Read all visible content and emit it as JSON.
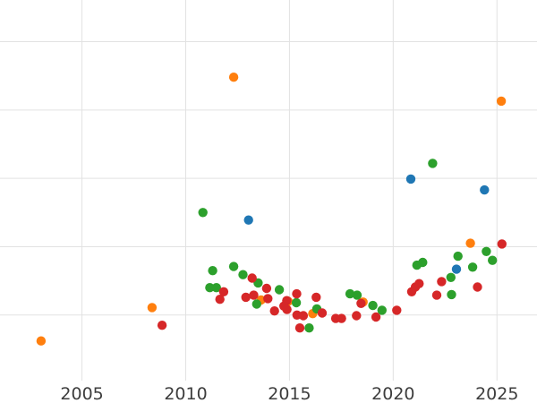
{
  "chart_data": {
    "type": "scatter",
    "title": "",
    "xlabel": "",
    "ylabel": "",
    "x_ticks": [
      2005,
      2010,
      2015,
      2020,
      2025
    ],
    "xlim": [
      2001.05,
      2026.93
    ],
    "ylim": [
      0.04,
      5.61
    ],
    "y_gridlines": [
      1,
      2,
      3,
      4,
      5
    ],
    "grid": true,
    "legend": false,
    "grid_color": "#e2e2e2",
    "tick_label_color": "#3d3d3d",
    "series": [
      {
        "name": "orange",
        "color": "#ff7f0e",
        "points": [
          [
            2003.03,
            0.62
          ],
          [
            2008.38,
            1.11
          ],
          [
            2012.31,
            4.48
          ],
          [
            2025.21,
            4.13
          ],
          [
            2023.72,
            2.05
          ],
          [
            2013.63,
            1.22
          ],
          [
            2014.94,
            1.2
          ],
          [
            2016.12,
            1.02
          ],
          [
            2018.55,
            1.19
          ]
        ]
      },
      {
        "name": "blue",
        "color": "#1f77b4",
        "points": [
          [
            2013.03,
            2.39
          ],
          [
            2020.85,
            2.99
          ],
          [
            2024.4,
            2.83
          ],
          [
            2023.05,
            1.67
          ]
        ]
      },
      {
        "name": "green",
        "color": "#2ca02c",
        "points": [
          [
            2010.83,
            2.5
          ],
          [
            2021.9,
            3.22
          ],
          [
            2011.3,
            1.65
          ],
          [
            2012.31,
            1.71
          ],
          [
            2012.76,
            1.59
          ],
          [
            2011.16,
            1.4
          ],
          [
            2011.48,
            1.4
          ],
          [
            2013.49,
            1.47
          ],
          [
            2014.51,
            1.37
          ],
          [
            2013.42,
            1.16
          ],
          [
            2015.33,
            1.18
          ],
          [
            2016.32,
            1.09
          ],
          [
            2015.95,
            0.81
          ],
          [
            2017.92,
            1.31
          ],
          [
            2018.26,
            1.29
          ],
          [
            2019.02,
            1.14
          ],
          [
            2019.46,
            1.07
          ],
          [
            2021.14,
            1.73
          ],
          [
            2021.42,
            1.77
          ],
          [
            2023.12,
            1.86
          ],
          [
            2022.78,
            1.55
          ],
          [
            2022.81,
            1.3
          ],
          [
            2023.83,
            1.7
          ],
          [
            2024.49,
            1.93
          ],
          [
            2024.78,
            1.8
          ]
        ]
      },
      {
        "name": "red",
        "color": "#d62728",
        "points": [
          [
            2008.86,
            0.85
          ],
          [
            2011.83,
            1.34
          ],
          [
            2011.65,
            1.23
          ],
          [
            2013.2,
            1.54
          ],
          [
            2013.9,
            1.39
          ],
          [
            2013.28,
            1.29
          ],
          [
            2012.9,
            1.26
          ],
          [
            2013.96,
            1.24
          ],
          [
            2014.28,
            1.06
          ],
          [
            2015.35,
            1.31
          ],
          [
            2014.87,
            1.21
          ],
          [
            2014.73,
            1.13
          ],
          [
            2014.88,
            1.08
          ],
          [
            2015.36,
            1.0
          ],
          [
            2015.67,
            0.99
          ],
          [
            2015.5,
            0.81
          ],
          [
            2016.58,
            1.03
          ],
          [
            2016.29,
            1.26
          ],
          [
            2017.23,
            0.95
          ],
          [
            2017.51,
            0.95
          ],
          [
            2018.45,
            1.17
          ],
          [
            2018.23,
            0.99
          ],
          [
            2019.17,
            0.97
          ],
          [
            2020.17,
            1.07
          ],
          [
            2020.89,
            1.34
          ],
          [
            2021.07,
            1.41
          ],
          [
            2021.25,
            1.46
          ],
          [
            2022.1,
            1.29
          ],
          [
            2022.33,
            1.49
          ],
          [
            2024.06,
            1.41
          ],
          [
            2025.24,
            2.04
          ]
        ]
      }
    ]
  }
}
